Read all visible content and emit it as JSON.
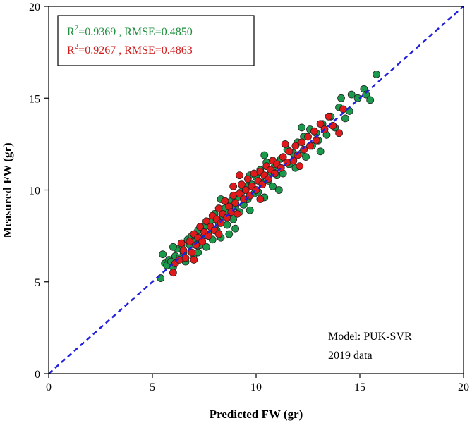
{
  "chart_data": {
    "type": "scatter",
    "xlabel": "Predicted FW (gr)",
    "ylabel": "Measured FW (gr)",
    "xlim": [
      0,
      20
    ],
    "ylim": [
      0,
      20
    ],
    "xticks": [
      "0",
      "5",
      "10",
      "15",
      "20"
    ],
    "yticks": [
      "0",
      "5",
      "10",
      "15",
      "20"
    ],
    "grid": false,
    "reference_line": {
      "name": "1:1 line",
      "from": [
        0,
        0
      ],
      "to": [
        20,
        20
      ],
      "color": "#1f1fdc",
      "style": "dashed"
    },
    "legend": {
      "placement": "top-left",
      "entries": [
        {
          "prefix": "R",
          "superscript": "2",
          "text": "=0.9369 , RMSE=0.4850",
          "color": "#1f8f3f"
        },
        {
          "prefix": "R",
          "superscript": "2",
          "text": "=0.9267 , RMSE=0.4863",
          "color": "#d11a1a"
        }
      ]
    },
    "annotations": [
      "Model:  PUK-SVR",
      "2019 data"
    ],
    "series": [
      {
        "name": "green",
        "color": "#1c9a4c",
        "points": [
          [
            5.4,
            5.2
          ],
          [
            5.5,
            6.5
          ],
          [
            5.6,
            6.0
          ],
          [
            5.7,
            5.9
          ],
          [
            5.8,
            6.2
          ],
          [
            5.9,
            6.1
          ],
          [
            6.0,
            5.8
          ],
          [
            6.1,
            6.4
          ],
          [
            6.2,
            6.8
          ],
          [
            6.3,
            6.3
          ],
          [
            6.4,
            7.0
          ],
          [
            6.5,
            6.6
          ],
          [
            6.6,
            6.1
          ],
          [
            6.7,
            7.3
          ],
          [
            6.8,
            7.0
          ],
          [
            6.9,
            7.5
          ],
          [
            7.0,
            6.5
          ],
          [
            7.1,
            7.2
          ],
          [
            7.2,
            7.8
          ],
          [
            7.3,
            7.0
          ],
          [
            7.4,
            7.4
          ],
          [
            7.5,
            8.0
          ],
          [
            7.6,
            6.9
          ],
          [
            7.7,
            7.6
          ],
          [
            7.8,
            8.3
          ],
          [
            7.9,
            7.3
          ],
          [
            8.0,
            8.7
          ],
          [
            8.1,
            7.8
          ],
          [
            8.2,
            8.2
          ],
          [
            8.3,
            7.4
          ],
          [
            8.4,
            8.6
          ],
          [
            8.5,
            9.0
          ],
          [
            8.6,
            8.1
          ],
          [
            8.7,
            8.8
          ],
          [
            8.8,
            9.4
          ],
          [
            8.9,
            8.4
          ],
          [
            9.0,
            9.1
          ],
          [
            9.1,
            9.6
          ],
          [
            9.2,
            8.8
          ],
          [
            9.3,
            9.9
          ],
          [
            9.4,
            9.2
          ],
          [
            9.5,
            10.2
          ],
          [
            9.6,
            9.5
          ],
          [
            9.7,
            8.9
          ],
          [
            9.8,
            10.3
          ],
          [
            9.9,
            9.8
          ],
          [
            10.0,
            10.7
          ],
          [
            10.1,
            9.9
          ],
          [
            10.2,
            11.1
          ],
          [
            10.3,
            10.4
          ],
          [
            10.4,
            9.6
          ],
          [
            10.5,
            11.5
          ],
          [
            10.6,
            10.5
          ],
          [
            10.7,
            11.0
          ],
          [
            10.8,
            10.2
          ],
          [
            10.9,
            11.3
          ],
          [
            11.0,
            10.8
          ],
          [
            11.2,
            11.7
          ],
          [
            11.3,
            10.9
          ],
          [
            11.5,
            12.2
          ],
          [
            11.6,
            11.4
          ],
          [
            11.8,
            12.0
          ],
          [
            11.9,
            11.2
          ],
          [
            12.0,
            12.6
          ],
          [
            12.2,
            12.0
          ],
          [
            12.3,
            12.9
          ],
          [
            12.4,
            11.8
          ],
          [
            12.6,
            13.3
          ],
          [
            12.7,
            12.4
          ],
          [
            12.9,
            13.1
          ],
          [
            13.0,
            12.7
          ],
          [
            13.2,
            13.6
          ],
          [
            13.4,
            13.0
          ],
          [
            13.6,
            14.0
          ],
          [
            13.8,
            13.4
          ],
          [
            14.0,
            14.5
          ],
          [
            14.1,
            15.0
          ],
          [
            14.3,
            13.9
          ],
          [
            14.5,
            14.3
          ],
          [
            14.6,
            15.2
          ],
          [
            14.9,
            15.0
          ],
          [
            15.2,
            15.5
          ],
          [
            15.3,
            15.2
          ],
          [
            15.5,
            14.9
          ],
          [
            15.8,
            16.3
          ],
          [
            7.2,
            6.6
          ],
          [
            8.3,
            9.5
          ],
          [
            9.0,
            7.9
          ],
          [
            10.4,
            11.9
          ],
          [
            11.1,
            10.0
          ],
          [
            6.0,
            6.9
          ],
          [
            12.2,
            13.4
          ],
          [
            13.1,
            12.1
          ],
          [
            9.7,
            10.8
          ],
          [
            8.7,
            7.6
          ]
        ]
      },
      {
        "name": "red",
        "color": "#e01a1a",
        "points": [
          [
            6.0,
            5.5
          ],
          [
            6.1,
            6.0
          ],
          [
            6.3,
            6.2
          ],
          [
            6.4,
            7.1
          ],
          [
            6.5,
            6.7
          ],
          [
            6.6,
            6.3
          ],
          [
            6.8,
            7.2
          ],
          [
            6.9,
            6.6
          ],
          [
            7.0,
            7.6
          ],
          [
            7.1,
            7.0
          ],
          [
            7.2,
            7.4
          ],
          [
            7.3,
            8.0
          ],
          [
            7.4,
            7.2
          ],
          [
            7.5,
            7.7
          ],
          [
            7.6,
            8.3
          ],
          [
            7.7,
            7.5
          ],
          [
            7.8,
            8.0
          ],
          [
            7.9,
            8.6
          ],
          [
            8.0,
            7.8
          ],
          [
            8.1,
            8.4
          ],
          [
            8.2,
            9.0
          ],
          [
            8.3,
            8.2
          ],
          [
            8.4,
            8.7
          ],
          [
            8.5,
            9.4
          ],
          [
            8.6,
            8.5
          ],
          [
            8.7,
            9.1
          ],
          [
            8.8,
            8.8
          ],
          [
            8.9,
            9.7
          ],
          [
            9.0,
            9.3
          ],
          [
            9.1,
            8.7
          ],
          [
            9.2,
            9.8
          ],
          [
            9.3,
            10.3
          ],
          [
            9.4,
            9.5
          ],
          [
            9.5,
            10.0
          ],
          [
            9.6,
            10.6
          ],
          [
            9.7,
            9.7
          ],
          [
            9.8,
            10.2
          ],
          [
            9.9,
            10.9
          ],
          [
            10.0,
            10.0
          ],
          [
            10.1,
            10.5
          ],
          [
            10.2,
            11.0
          ],
          [
            10.3,
            10.3
          ],
          [
            10.4,
            10.8
          ],
          [
            10.5,
            11.3
          ],
          [
            10.6,
            10.6
          ],
          [
            10.7,
            11.1
          ],
          [
            10.8,
            11.6
          ],
          [
            10.9,
            10.9
          ],
          [
            11.0,
            11.4
          ],
          [
            11.2,
            11.2
          ],
          [
            11.3,
            11.8
          ],
          [
            11.5,
            11.5
          ],
          [
            11.6,
            12.1
          ],
          [
            11.8,
            11.6
          ],
          [
            11.9,
            12.4
          ],
          [
            12.0,
            11.9
          ],
          [
            12.2,
            12.6
          ],
          [
            12.3,
            12.2
          ],
          [
            12.5,
            12.9
          ],
          [
            12.6,
            12.4
          ],
          [
            12.8,
            13.2
          ],
          [
            12.9,
            12.7
          ],
          [
            13.1,
            13.6
          ],
          [
            13.3,
            13.3
          ],
          [
            13.5,
            14.0
          ],
          [
            13.7,
            13.5
          ],
          [
            14.0,
            13.1
          ],
          [
            14.2,
            14.4
          ],
          [
            9.2,
            10.8
          ],
          [
            8.2,
            7.6
          ],
          [
            10.2,
            9.5
          ],
          [
            11.4,
            12.5
          ],
          [
            7.0,
            6.2
          ],
          [
            12.1,
            11.3
          ],
          [
            8.9,
            10.2
          ]
        ]
      }
    ]
  }
}
